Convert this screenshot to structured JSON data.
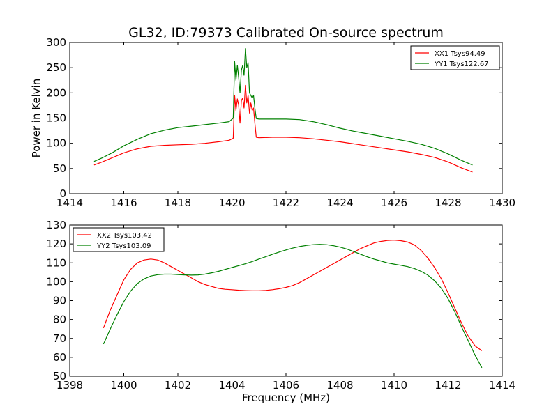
{
  "figure_title": "GL32, ID:79373 Calibrated On-source spectrum",
  "chart_data": [
    {
      "type": "line",
      "title": "GL32, ID:79373 Calibrated On-source spectrum",
      "xlabel": "",
      "ylabel": "Power in Kelvin",
      "xlim": [
        1414,
        1430
      ],
      "ylim": [
        0,
        300
      ],
      "xticks": [
        "1414",
        "1416",
        "1418",
        "1420",
        "1422",
        "1424",
        "1426",
        "1428",
        "1430"
      ],
      "yticks": [
        "0",
        "50",
        "100",
        "150",
        "200",
        "250",
        "300"
      ],
      "grid": false,
      "legend_position": "upper right",
      "series": [
        {
          "name": "XX1 Tsys94.49",
          "color": "#ff0000",
          "x": [
            1414.9,
            1415.2,
            1415.6,
            1416.0,
            1416.5,
            1417.0,
            1417.5,
            1418.0,
            1418.5,
            1419.0,
            1419.5,
            1419.9,
            1420.05,
            1420.1,
            1420.15,
            1420.2,
            1420.25,
            1420.3,
            1420.35,
            1420.4,
            1420.45,
            1420.5,
            1420.55,
            1420.6,
            1420.65,
            1420.7,
            1420.75,
            1420.8,
            1420.85,
            1420.9,
            1421.0,
            1421.5,
            1422.0,
            1422.5,
            1423.0,
            1423.5,
            1424.0,
            1424.5,
            1425.0,
            1425.5,
            1426.0,
            1426.5,
            1427.0,
            1427.5,
            1428.0,
            1428.5,
            1428.9
          ],
          "y": [
            57,
            63,
            72,
            81,
            89,
            94,
            96,
            97,
            98,
            100,
            103,
            106,
            110,
            195,
            165,
            188,
            175,
            140,
            185,
            190,
            170,
            215,
            180,
            195,
            160,
            180,
            165,
            170,
            140,
            112,
            111,
            112,
            112,
            111,
            109,
            106,
            103,
            99,
            95,
            91,
            87,
            83,
            78,
            72,
            63,
            51,
            43
          ]
        },
        {
          "name": "YY1 Tsys122.67",
          "color": "#008000",
          "x": [
            1414.9,
            1415.2,
            1415.6,
            1416.0,
            1416.5,
            1417.0,
            1417.5,
            1418.0,
            1418.5,
            1419.0,
            1419.5,
            1419.9,
            1420.05,
            1420.1,
            1420.15,
            1420.2,
            1420.25,
            1420.3,
            1420.35,
            1420.4,
            1420.45,
            1420.5,
            1420.55,
            1420.6,
            1420.65,
            1420.7,
            1420.75,
            1420.8,
            1420.85,
            1420.9,
            1421.0,
            1421.5,
            1422.0,
            1422.5,
            1423.0,
            1423.5,
            1424.0,
            1424.5,
            1425.0,
            1425.5,
            1426.0,
            1426.5,
            1427.0,
            1427.5,
            1428.0,
            1428.5,
            1428.9
          ],
          "y": [
            64,
            71,
            82,
            95,
            108,
            119,
            126,
            131,
            134,
            137,
            140,
            143,
            150,
            262,
            225,
            255,
            230,
            200,
            245,
            255,
            235,
            288,
            250,
            260,
            200,
            195,
            190,
            195,
            170,
            149,
            148,
            148,
            148,
            147,
            143,
            137,
            130,
            124,
            119,
            114,
            109,
            104,
            98,
            90,
            79,
            66,
            57
          ]
        }
      ]
    },
    {
      "type": "line",
      "title": "",
      "xlabel": "Frequency (MHz)",
      "ylabel": "",
      "xlim": [
        1398,
        1414
      ],
      "ylim": [
        50,
        130
      ],
      "xticks": [
        "1398",
        "1400",
        "1402",
        "1404",
        "1406",
        "1408",
        "1410",
        "1412",
        "1414"
      ],
      "yticks": [
        "50",
        "60",
        "70",
        "80",
        "90",
        "100",
        "110",
        "120",
        "130"
      ],
      "grid": false,
      "legend_position": "upper left",
      "series": [
        {
          "name": "XX2 Tsys103.42",
          "color": "#ff0000",
          "x": [
            1399.25,
            1399.5,
            1399.75,
            1400.0,
            1400.25,
            1400.5,
            1400.75,
            1401.0,
            1401.25,
            1401.5,
            1401.75,
            1402.0,
            1402.25,
            1402.5,
            1402.75,
            1403.0,
            1403.25,
            1403.5,
            1403.75,
            1404.0,
            1404.25,
            1404.5,
            1404.75,
            1405.0,
            1405.25,
            1405.5,
            1405.75,
            1406.0,
            1406.25,
            1406.5,
            1406.75,
            1407.0,
            1407.25,
            1407.5,
            1407.75,
            1408.0,
            1408.25,
            1408.5,
            1408.75,
            1409.0,
            1409.25,
            1409.5,
            1409.75,
            1410.0,
            1410.25,
            1410.5,
            1410.75,
            1411.0,
            1411.25,
            1411.5,
            1411.75,
            1412.0,
            1412.25,
            1412.5,
            1412.75,
            1413.0,
            1413.25
          ],
          "y": [
            75.5,
            85,
            93,
            101,
            106.5,
            110,
            111.5,
            112,
            111.5,
            110,
            108,
            106,
            104,
            102,
            100,
            98.5,
            97.5,
            96.5,
            96,
            95.8,
            95.5,
            95.3,
            95.2,
            95.2,
            95.4,
            95.8,
            96.3,
            97,
            98,
            99.5,
            101.5,
            103.5,
            105.5,
            107.5,
            109.5,
            111.5,
            113.5,
            115.5,
            117.5,
            119,
            120.5,
            121.3,
            121.8,
            122,
            121.7,
            121,
            119.5,
            116.5,
            112.5,
            107.5,
            101.5,
            94,
            86,
            78,
            71,
            66,
            63.5
          ]
        },
        {
          "name": "YY2 Tsys103.09",
          "color": "#008000",
          "x": [
            1399.25,
            1399.5,
            1399.75,
            1400.0,
            1400.25,
            1400.5,
            1400.75,
            1401.0,
            1401.25,
            1401.5,
            1401.75,
            1402.0,
            1402.25,
            1402.5,
            1402.75,
            1403.0,
            1403.25,
            1403.5,
            1403.75,
            1404.0,
            1404.25,
            1404.5,
            1404.75,
            1405.0,
            1405.25,
            1405.5,
            1405.75,
            1406.0,
            1406.25,
            1406.5,
            1406.75,
            1407.0,
            1407.25,
            1407.5,
            1407.75,
            1408.0,
            1408.25,
            1408.5,
            1408.75,
            1409.0,
            1409.25,
            1409.5,
            1409.75,
            1410.0,
            1410.25,
            1410.5,
            1410.75,
            1411.0,
            1411.25,
            1411.5,
            1411.75,
            1412.0,
            1412.25,
            1412.5,
            1412.75,
            1413.0,
            1413.25
          ],
          "y": [
            67,
            75,
            82.5,
            89.5,
            95,
            99,
            101.5,
            103,
            103.7,
            104,
            104,
            103.8,
            103.6,
            103.5,
            103.6,
            104,
            104.7,
            105.5,
            106.5,
            107.5,
            108.5,
            109.5,
            110.7,
            112,
            113.2,
            114.5,
            115.7,
            116.8,
            117.8,
            118.6,
            119.2,
            119.6,
            119.8,
            119.6,
            119.1,
            118.3,
            117.3,
            116,
            114.6,
            113.2,
            112,
            111,
            110,
            109.3,
            108.7,
            108,
            107,
            105.5,
            103.5,
            100.5,
            96.5,
            91,
            84,
            76,
            68.5,
            61,
            54.5
          ]
        }
      ]
    }
  ]
}
